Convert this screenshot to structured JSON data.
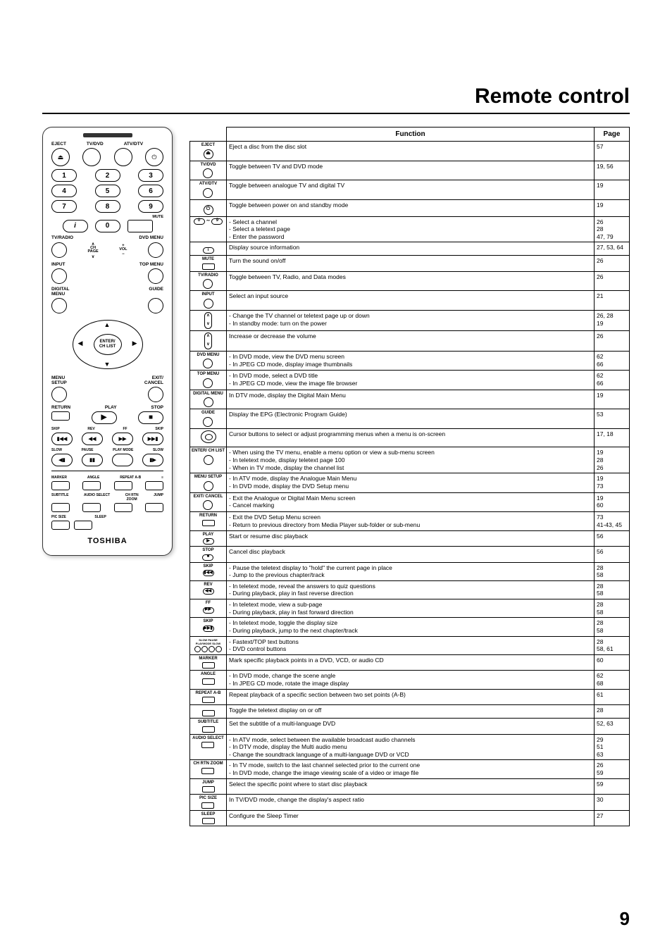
{
  "title": "Remote control",
  "page_number": "9",
  "table": {
    "headers": {
      "function": "Function",
      "page": "Page"
    },
    "rows": [
      {
        "icon_label": "EJECT",
        "icon_type": "circ",
        "icon_glyph": "⏏",
        "func": [
          "Eject a disc from the disc slot"
        ],
        "page": "57"
      },
      {
        "icon_label": "TV/DVD",
        "icon_type": "circ",
        "func": [
          "Toggle between TV and DVD mode"
        ],
        "page": "19, 56"
      },
      {
        "icon_label": "ATV/DTV",
        "icon_type": "circ",
        "func": [
          "Toggle between analogue TV and digital TV"
        ],
        "page": "19"
      },
      {
        "icon_label": "",
        "icon_type": "circ",
        "icon_glyph": "⏻",
        "func": [
          "Toggle between power on and standby mode"
        ],
        "page": "19"
      },
      {
        "icon_label": "",
        "icon_type": "pills09",
        "func": [
          "Select a channel",
          "Select a teletext page",
          "Enter the password"
        ],
        "page": "26\n28\n47, 79"
      },
      {
        "icon_label": "",
        "icon_type": "pill",
        "icon_glyph": "i",
        "func": [
          "Display source information"
        ],
        "page": "27, 53, 64"
      },
      {
        "icon_label": "MUTE",
        "icon_type": "rect",
        "func": [
          "Turn the sound on/off"
        ],
        "page": "26"
      },
      {
        "icon_label": "TV/RADIO",
        "icon_type": "circ",
        "func": [
          "Toggle between TV, Radio, and Data modes"
        ],
        "page": "26"
      },
      {
        "icon_label": "INPUT",
        "icon_type": "circ",
        "func": [
          "Select an input source"
        ],
        "page": "21"
      },
      {
        "icon_label": "CH PAGE",
        "icon_type": "rocker",
        "func": [
          "Change the TV channel or teletext page up or down",
          "In standby mode: turn on the power"
        ],
        "page": "26, 28\n19"
      },
      {
        "icon_label": "VOL",
        "icon_type": "rocker",
        "func": [
          "Increase or decrease the volume"
        ],
        "page": "26"
      },
      {
        "icon_label": "DVD MENU",
        "icon_type": "circ",
        "func": [
          "In DVD mode, view the DVD menu screen",
          "In JPEG CD mode, display image thumbnails"
        ],
        "page": "62\n66"
      },
      {
        "icon_label": "TOP MENU",
        "icon_type": "circ",
        "func": [
          "In DVD mode, select a DVD title",
          "In JPEG CD mode, view the image file browser"
        ],
        "page": "62\n66"
      },
      {
        "icon_label": "DIGITAL MENU",
        "icon_type": "circ",
        "func": [
          "In DTV mode, display the Digital Main Menu"
        ],
        "page": "19"
      },
      {
        "icon_label": "GUIDE",
        "icon_type": "circ",
        "func": [
          "Display the EPG (Electronic Program Guide)"
        ],
        "page": "53"
      },
      {
        "icon_label": "",
        "icon_type": "dpad",
        "func": [
          "Cursor buttons to select or adjust programming menus when a menu is on-screen"
        ],
        "page": "17, 18"
      },
      {
        "icon_label": "ENTER/ CH LIST",
        "icon_type": "circ",
        "func": [
          "When using the TV menu, enable a menu option or view a sub-menu screen",
          "In teletext mode, display teletext page 100",
          "When in TV mode, display the channel list"
        ],
        "page": "19\n28\n26"
      },
      {
        "icon_label": "MENU SETUP",
        "icon_type": "circ",
        "func": [
          "In ATV mode, display the Analogue Main Menu",
          "In DVD mode, display the DVD Setup menu"
        ],
        "page": "19\n73"
      },
      {
        "icon_label": "EXIT/ CANCEL",
        "icon_type": "circ",
        "func": [
          "Exit the Analogue or Digital Main Menu screen",
          "Cancel marking"
        ],
        "page": "19\n60"
      },
      {
        "icon_label": "RETURN",
        "icon_type": "rect",
        "func": [
          "Exit the DVD Setup Menu screen",
          "Return to previous directory from Media Player sub-folder or sub-menu"
        ],
        "page": "73\n41-43, 45"
      },
      {
        "icon_label": "PLAY",
        "icon_type": "pill",
        "icon_glyph": "▶",
        "func": [
          "Start or resume disc playback"
        ],
        "page": "56"
      },
      {
        "icon_label": "STOP",
        "icon_type": "pill",
        "icon_glyph": "■",
        "func": [
          "Cancel disc playback"
        ],
        "page": "56"
      },
      {
        "icon_label": "SKIP",
        "icon_type": "pill",
        "icon_glyph": "▮◀◀",
        "func": [
          "Pause the teletext display to \"hold\" the current page in place",
          "Jump to the previous chapter/track"
        ],
        "page": "28\n58"
      },
      {
        "icon_label": "REV",
        "icon_type": "pill",
        "icon_glyph": "◀◀",
        "func": [
          "In teletext mode, reveal the answers to quiz questions",
          "During playback, play in fast reverse direction"
        ],
        "page": "28\n58"
      },
      {
        "icon_label": "FF",
        "icon_type": "pill",
        "icon_glyph": "▶▶",
        "func": [
          "In teletext mode, view a sub-page",
          "During playback, play in fast forward direction"
        ],
        "page": "28\n58"
      },
      {
        "icon_label": "SKIP",
        "icon_type": "pill",
        "icon_glyph": "▶▶▮",
        "func": [
          "In teletext mode, toggle the display size",
          "During playback, jump to the next chapter/track"
        ],
        "page": "28\n58"
      },
      {
        "icon_label": "SLOW PAUSE PLAYMODE SLOW",
        "icon_type": "four-pill",
        "func": [
          "Fastext/TOP text buttons",
          "DVD control buttons"
        ],
        "page": "28\n58, 61"
      },
      {
        "icon_label": "MARKER",
        "icon_type": "rect",
        "func": [
          "Mark specific playback points in a DVD, VCD, or audio CD"
        ],
        "page": "60"
      },
      {
        "icon_label": "ANGLE",
        "icon_type": "rect",
        "func": [
          "In DVD mode, change the scene angle",
          "In JPEG CD mode, rotate the image display"
        ],
        "page": "62\n68"
      },
      {
        "icon_label": "REPEAT A-B",
        "icon_type": "rect",
        "func": [
          "Repeat playback of a specific section between two set points (A-B)"
        ],
        "page": "61"
      },
      {
        "icon_label": "",
        "icon_type": "rect",
        "icon_glyph": "≡",
        "func": [
          "Toggle the teletext display on or off"
        ],
        "page": "28"
      },
      {
        "icon_label": "SUBTITLE",
        "icon_type": "rect",
        "func": [
          "Set the subtitle of a multi-language DVD"
        ],
        "page": "52, 63"
      },
      {
        "icon_label": "AUDIO SELECT",
        "icon_type": "rect",
        "func": [
          "In ATV mode, select between the available broadcast audio channels",
          "In DTV mode, display the Multi audio menu",
          "Change the soundtrack language of a multi-language DVD or VCD"
        ],
        "page": "29\n51\n63"
      },
      {
        "icon_label": "CH RTN ZOOM",
        "icon_type": "rect",
        "func": [
          "In TV mode, switch to the last channel selected prior to the current one",
          "In DVD mode, change the image viewing scale of a video or image file"
        ],
        "page": "26\n59"
      },
      {
        "icon_label": "JUMP",
        "icon_type": "rect",
        "func": [
          "Select the specific point where to start disc playback"
        ],
        "page": "59"
      },
      {
        "icon_label": "PIC SIZE",
        "icon_type": "rect",
        "func": [
          "In TV/DVD mode, change the display's aspect ratio"
        ],
        "page": "30"
      },
      {
        "icon_label": "SLEEP",
        "icon_type": "rect",
        "func": [
          "Configure the Sleep Timer"
        ],
        "page": "27"
      }
    ]
  },
  "remote": {
    "top_labels": [
      "EJECT",
      "TV/DVD",
      "ATV/DTV",
      ""
    ],
    "row_tv_radio_left": "TV/RADIO",
    "row_tv_radio_right": "DVD MENU",
    "row_input": "INPUT",
    "ch_page": "CH\nPAGE",
    "vol": "VOL",
    "top_menu": "TOP MENU",
    "digital_menu": "DIGITAL\nMENU",
    "guide": "GUIDE",
    "enter": "ENTER/",
    "chlist": "CH LIST",
    "menu_setup": "MENU\nSETUP",
    "exit_cancel": "EXIT/\nCANCEL",
    "return": "RETURN",
    "play": "PLAY",
    "stop": "STOP",
    "skip": "SKIP",
    "rev": "REV",
    "ff": "FF",
    "slow": "SLOW",
    "pause": "PAUSE",
    "playmode": "PLAY MODE",
    "marker": "MARKER",
    "angle": "ANGLE",
    "repeat": "REPEAT A-B",
    "subtitle": "SUBTITLE",
    "audio_select": "AUDIO SELECT",
    "chrtn": "CH RTN\nZOOM",
    "jump": "JUMP",
    "picsize": "PIC SIZE",
    "sleep": "SLEEP",
    "mute": "MUTE",
    "brand": "TOSHIBA"
  }
}
